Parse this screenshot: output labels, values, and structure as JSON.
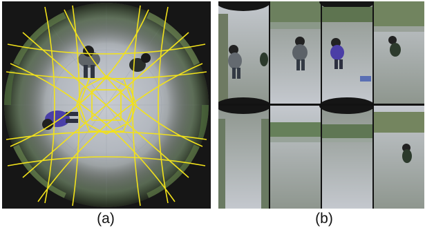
{
  "figure": {
    "panels": [
      {
        "id": "a",
        "caption": "(a)",
        "content": "fisheye-overhead-view-with-overlay"
      },
      {
        "id": "b",
        "caption": "(b)",
        "content": "rectified-view-grid"
      }
    ],
    "overlay_color": "#f2e21b",
    "grid": {
      "rows": 2,
      "cols": 4
    }
  }
}
